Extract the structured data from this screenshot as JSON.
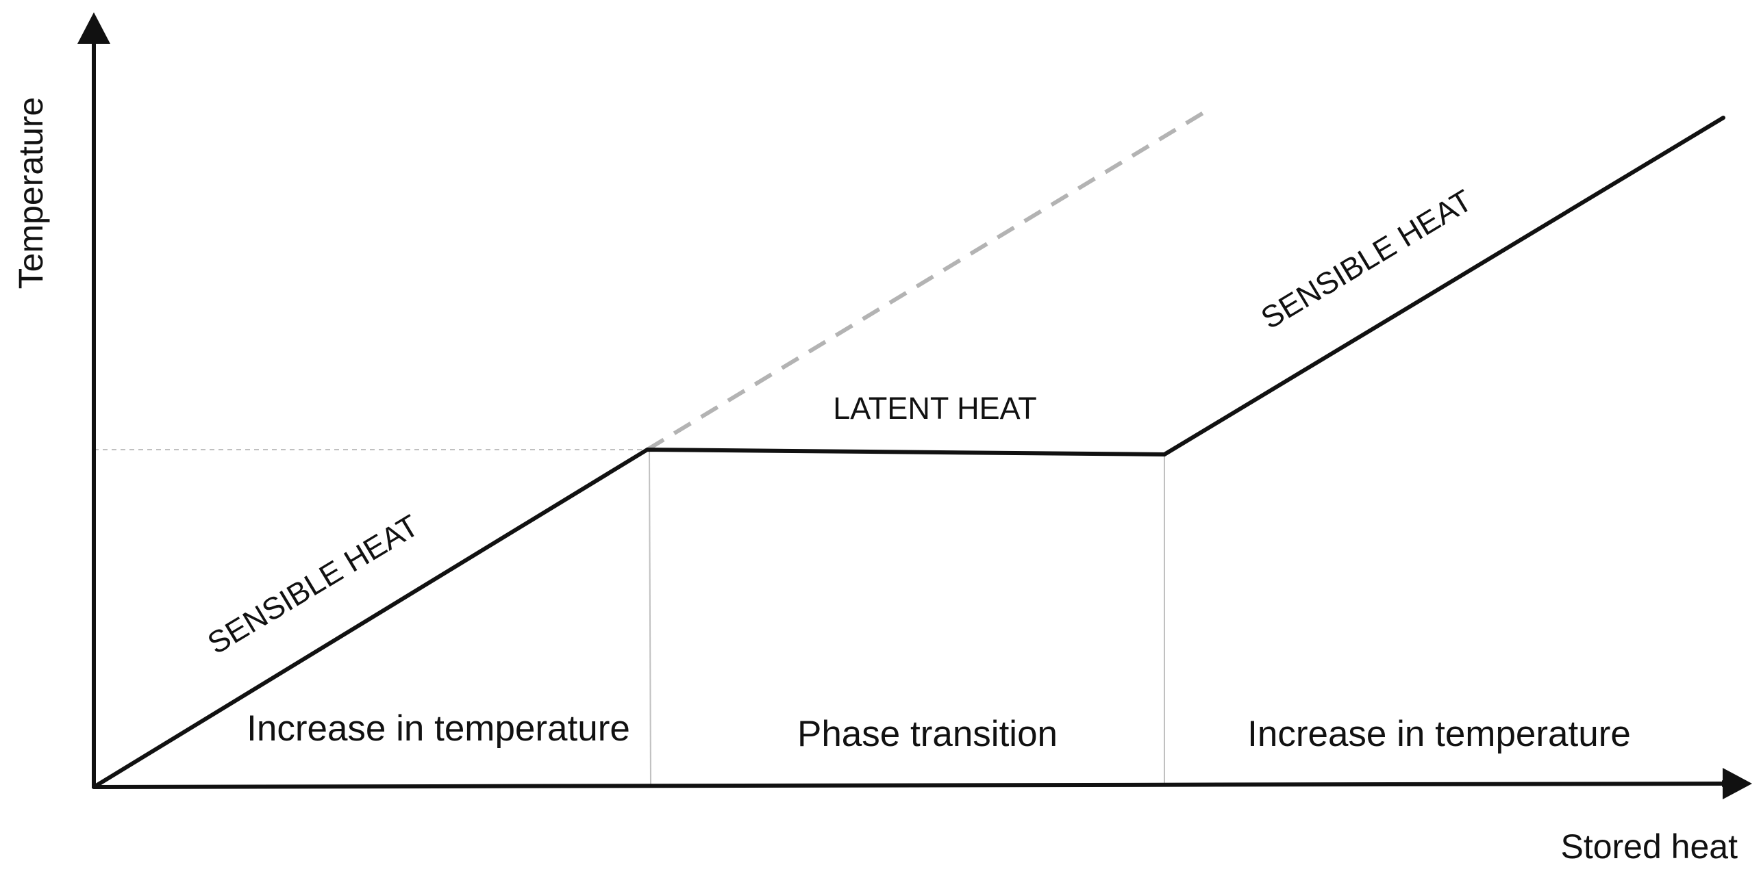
{
  "axes": {
    "x_label": "Stored heat",
    "y_label": "Temperature"
  },
  "segments": [
    {
      "label": "SENSIBLE HEAT",
      "region_label": "Increase in temperature"
    },
    {
      "label": "LATENT HEAT",
      "region_label": "Phase transition"
    },
    {
      "label": "SENSIBLE HEAT",
      "region_label": "Increase in temperature"
    }
  ],
  "colors": {
    "curve": "#111111",
    "extrapolation": "#b3b3b3",
    "guide": "#c0c0c0"
  }
}
